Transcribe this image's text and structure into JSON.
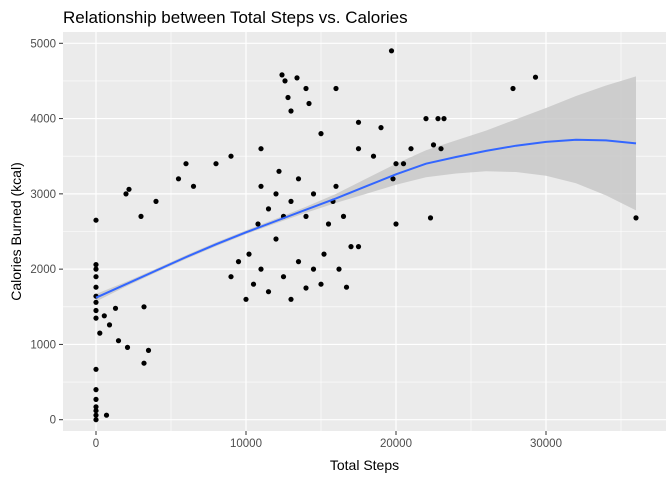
{
  "chart_data": {
    "type": "scatter",
    "title": "Relationship between Total Steps vs. Calories",
    "xlabel": "Total Steps",
    "ylabel": "Calories Burned (kcal)",
    "xlim": [
      -2200,
      38000
    ],
    "ylim": [
      -150,
      5150
    ],
    "x_ticks": [
      0,
      10000,
      20000,
      30000
    ],
    "x_tick_labels": [
      "0",
      "10000",
      "20000",
      "30000"
    ],
    "y_ticks": [
      0,
      1000,
      2000,
      3000,
      4000,
      5000
    ],
    "y_tick_labels": [
      "0",
      "1000",
      "2000",
      "3000",
      "4000",
      "5000"
    ],
    "grid": true,
    "legend": "none",
    "colors": {
      "panel": "#ebebeb",
      "grid": "#ffffff",
      "points": "#000000",
      "smooth_line": "#3366ff",
      "confidence_band": "#c8c8c8"
    },
    "smooth": {
      "method": "loess",
      "x": [
        0,
        2000,
        4000,
        6000,
        8000,
        10000,
        12000,
        14000,
        16000,
        18000,
        20000,
        22000,
        24000,
        26000,
        28000,
        30000,
        32000,
        34000,
        36000
      ],
      "y": [
        1620,
        1800,
        1980,
        2160,
        2330,
        2490,
        2640,
        2790,
        2940,
        3100,
        3260,
        3400,
        3490,
        3570,
        3640,
        3690,
        3720,
        3710,
        3670
      ],
      "ci_low": [
        1570,
        1770,
        1955,
        2135,
        2305,
        2465,
        2610,
        2750,
        2880,
        3000,
        3120,
        3220,
        3270,
        3300,
        3290,
        3240,
        3140,
        2980,
        2780
      ],
      "ci_high": [
        1670,
        1830,
        2005,
        2185,
        2355,
        2515,
        2670,
        2830,
        3000,
        3200,
        3400,
        3580,
        3710,
        3840,
        3990,
        4140,
        4300,
        4440,
        4560
      ]
    },
    "series": [
      {
        "points": [
          [
            0,
            0
          ],
          [
            0,
            60
          ],
          [
            0,
            120
          ],
          [
            0,
            170
          ],
          [
            0,
            270
          ],
          [
            0,
            400
          ],
          [
            0,
            670
          ],
          [
            0,
            1350
          ],
          [
            0,
            1450
          ],
          [
            0,
            1560
          ],
          [
            0,
            1640
          ],
          [
            0,
            1760
          ],
          [
            0,
            1900
          ],
          [
            0,
            2000
          ],
          [
            0,
            2060
          ],
          [
            0,
            2650
          ],
          [
            700,
            60
          ],
          [
            250,
            1150
          ],
          [
            550,
            1380
          ],
          [
            900,
            1260
          ],
          [
            1300,
            1480
          ],
          [
            1500,
            1050
          ],
          [
            2100,
            960
          ],
          [
            3200,
            750
          ],
          [
            3500,
            920
          ],
          [
            3200,
            1500
          ],
          [
            2000,
            3000
          ],
          [
            2200,
            3060
          ],
          [
            3000,
            2700
          ],
          [
            4000,
            2900
          ],
          [
            6500,
            3100
          ],
          [
            6000,
            3400
          ],
          [
            5500,
            3200
          ],
          [
            8000,
            3400
          ],
          [
            9000,
            3500
          ],
          [
            11000,
            3600
          ],
          [
            12400,
            4580
          ],
          [
            12600,
            4500
          ],
          [
            13400,
            4540
          ],
          [
            14000,
            4400
          ],
          [
            12800,
            4280
          ],
          [
            14200,
            4200
          ],
          [
            16000,
            4400
          ],
          [
            13000,
            4100
          ],
          [
            15000,
            3800
          ],
          [
            17500,
            3600
          ],
          [
            17500,
            3950
          ],
          [
            19000,
            3880
          ],
          [
            18500,
            3500
          ],
          [
            20000,
            3400
          ],
          [
            19800,
            3200
          ],
          [
            20500,
            3400
          ],
          [
            21000,
            3600
          ],
          [
            22500,
            3650
          ],
          [
            22000,
            4000
          ],
          [
            22800,
            4000
          ],
          [
            23200,
            4000
          ],
          [
            23000,
            3600
          ],
          [
            19700,
            4900
          ],
          [
            27800,
            4400
          ],
          [
            29300,
            4550
          ],
          [
            16000,
            3100
          ],
          [
            15800,
            2900
          ],
          [
            15500,
            2600
          ],
          [
            16500,
            2700
          ],
          [
            17000,
            2300
          ],
          [
            17500,
            2300
          ],
          [
            15200,
            2200
          ],
          [
            16200,
            2000
          ],
          [
            16700,
            1760
          ],
          [
            20000,
            2600
          ],
          [
            22300,
            2680
          ],
          [
            36000,
            2680
          ],
          [
            9000,
            1900
          ],
          [
            9500,
            2100
          ],
          [
            10000,
            1600
          ],
          [
            10200,
            2200
          ],
          [
            10500,
            1800
          ],
          [
            11000,
            2000
          ],
          [
            11500,
            1700
          ],
          [
            12000,
            2400
          ],
          [
            12500,
            1900
          ],
          [
            13000,
            1600
          ],
          [
            13500,
            2100
          ],
          [
            14000,
            1750
          ],
          [
            14500,
            2000
          ],
          [
            15000,
            1800
          ],
          [
            10800,
            2600
          ],
          [
            11500,
            2800
          ],
          [
            12000,
            3000
          ],
          [
            12500,
            2700
          ],
          [
            13000,
            2900
          ],
          [
            13500,
            3200
          ],
          [
            14000,
            2700
          ],
          [
            14500,
            3000
          ],
          [
            11000,
            3100
          ],
          [
            12200,
            3300
          ]
        ]
      }
    ]
  }
}
